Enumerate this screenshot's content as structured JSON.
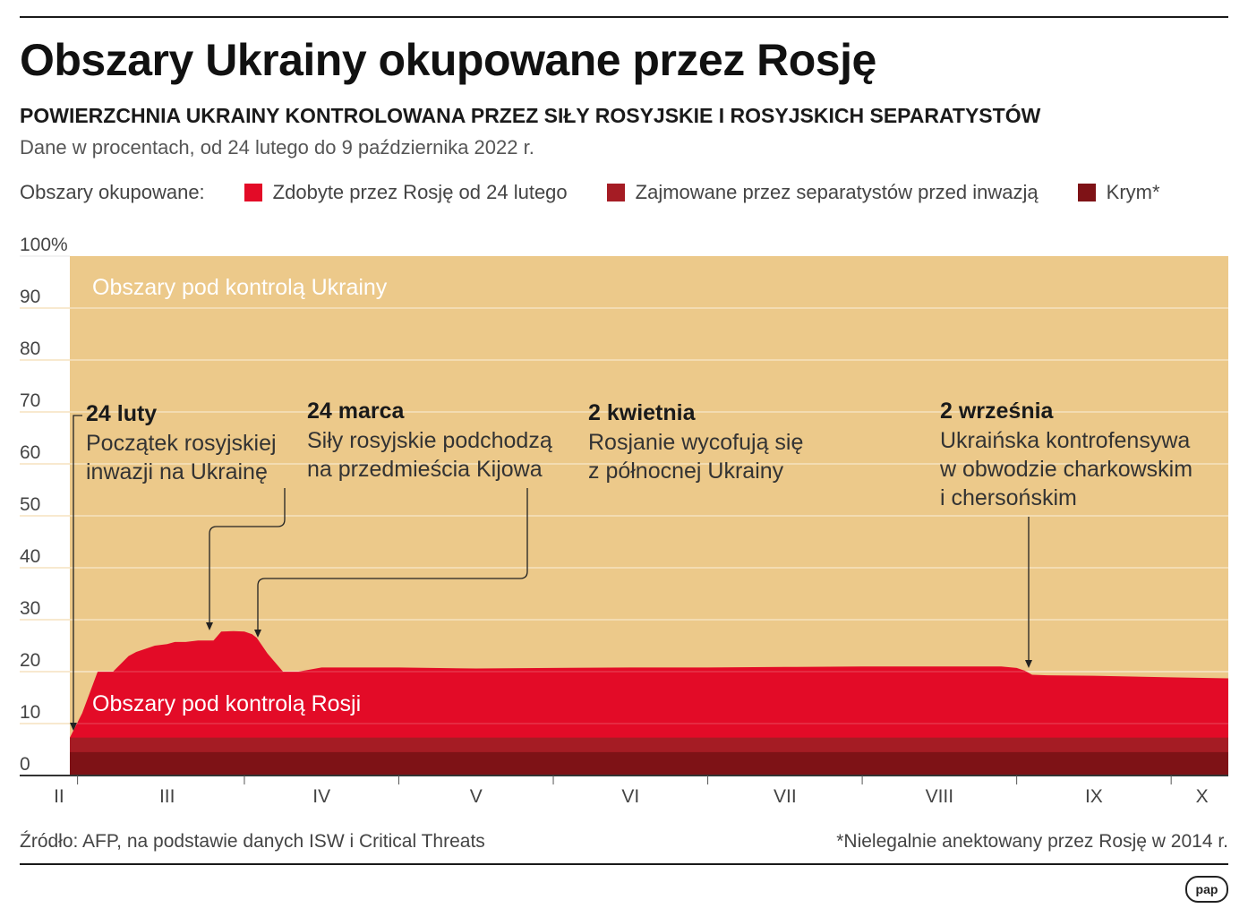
{
  "title": "Obszary Ukrainy okupowane przez Rosję",
  "subtitle": "POWIERZCHNIA UKRAINY KONTROLOWANA PRZEZ SIŁY ROSYJSKIE I ROSYJSKICH SEPARATYSTÓW",
  "description": "Dane w procentach, od 24 lutego do 9 października 2022 r.",
  "legend": {
    "label": "Obszary okupowane:",
    "items": [
      {
        "label": "Zdobyte przez Rosję od 24 lutego",
        "color": "#e30b27"
      },
      {
        "label": "Zajmowane przez separatystów przed inwazją",
        "color": "#a51c24"
      },
      {
        "label": "Krym*",
        "color": "#7e1216"
      }
    ]
  },
  "footer": {
    "source": "Źródło: AFP, na podstawie danych ISW i Critical Threats",
    "note": "*Nielegalnie anektowany przez Rosję w 2014 r.",
    "logo": "pap"
  },
  "chart_data": {
    "type": "area",
    "ylim": [
      0,
      100
    ],
    "yticks": [
      "0",
      "10",
      "20",
      "30",
      "40",
      "50",
      "60",
      "70",
      "80",
      "90",
      "100%"
    ],
    "month_labels": [
      {
        "label": "II",
        "x": 0.8
      },
      {
        "label": "III",
        "x": 1.5
      },
      {
        "label": "IV",
        "x": 2.5
      },
      {
        "label": "V",
        "x": 3.5
      },
      {
        "label": "VI",
        "x": 4.5
      },
      {
        "label": "VII",
        "x": 5.5
      },
      {
        "label": "VIII",
        "x": 6.5
      },
      {
        "label": "IX",
        "x": 7.5
      },
      {
        "label": "X",
        "x": 8.2
      }
    ],
    "month_boundaries": [
      0.92,
      2.0,
      3.0,
      4.0,
      5.0,
      6.0,
      7.0,
      8.0
    ],
    "x_range": [
      0.87,
      8.37
    ],
    "region_labels": {
      "ukraine": "Obszary pod kontrolą Ukrainy",
      "russia": "Obszary pod kontrolą Rosji"
    },
    "colors": {
      "ukraine": "#ecc98a",
      "captured": "#e30b27",
      "separatists": "#a51c24",
      "crimea": "#7e1216",
      "grid": "#f5e2bf"
    },
    "layers": {
      "crimea": 4.5,
      "separatists_top": 7.3
    },
    "series": [
      {
        "name": "Zdobyte przez Rosję od 24 lutego",
        "x": [
          0.87,
          0.95,
          1.05,
          1.15,
          1.25,
          1.3,
          1.42,
          1.5,
          1.55,
          1.62,
          1.7,
          1.8,
          1.85,
          1.93,
          2.0,
          2.05,
          2.08,
          2.15,
          2.25,
          2.35,
          2.5,
          3.0,
          3.5,
          4.0,
          4.5,
          5.0,
          5.5,
          6.0,
          6.5,
          6.9,
          7.0,
          7.05,
          7.1,
          7.2,
          7.5,
          8.0,
          8.37
        ],
        "y": [
          7.3,
          12.0,
          20.0,
          20.0,
          23.0,
          23.8,
          25.0,
          25.3,
          25.7,
          25.7,
          26.0,
          26.0,
          27.7,
          27.8,
          27.7,
          27.2,
          26.5,
          23.5,
          20.0,
          20.0,
          20.8,
          20.8,
          20.6,
          20.7,
          20.8,
          20.8,
          20.9,
          21.0,
          21.0,
          21.0,
          20.7,
          20.2,
          19.4,
          19.3,
          19.2,
          18.9,
          18.7
        ]
      }
    ],
    "annotations": [
      {
        "date": "24 luty",
        "lines": [
          "Początek rosyjskiej",
          "inwazji na Ukrainę"
        ],
        "x": 0.87,
        "y": 7.3
      },
      {
        "date": "24 marca",
        "lines": [
          "Siły rosyjskie podchodzą",
          "na przedmieścia Kijowa"
        ],
        "x": 1.9,
        "y": 27.8
      },
      {
        "date": "2 kwietnia",
        "lines": [
          "Rosjanie wycofują się",
          "z północnej Ukrainy"
        ],
        "x": 2.05,
        "y": 27.0
      },
      {
        "date": "2 września",
        "lines": [
          "Ukraińska kontrofensywa",
          "w obwodzie charkowskim",
          "i chersońskim"
        ],
        "x": 7.05,
        "y": 20.5
      }
    ]
  }
}
